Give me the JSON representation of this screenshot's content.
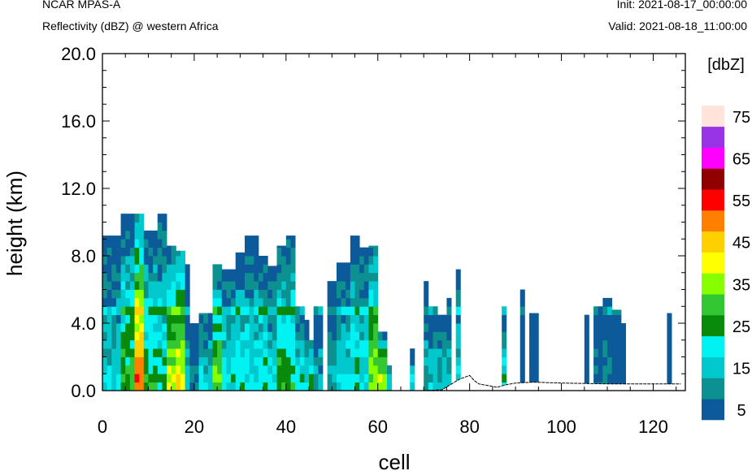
{
  "header": {
    "left_line1": "NCAR MPAS-A",
    "left_line2": "Reflectivity (dBZ) @ western Africa",
    "right_line1": "Init: 2021-08-17_00:00:00",
    "right_line2": "Valid: 2021-08-18_11:00:00"
  },
  "chart_data": {
    "type": "heatmap",
    "xlabel": "cell",
    "ylabel": "height (km)",
    "xlim": [
      0,
      127
    ],
    "ylim": [
      0,
      20
    ],
    "x_ticks": [
      0,
      20,
      40,
      60,
      80,
      100,
      120
    ],
    "x_tick_labels": [
      "0",
      "20",
      "40",
      "60",
      "80",
      "100",
      "120"
    ],
    "y_ticks": [
      0,
      4,
      8,
      12,
      16,
      20
    ],
    "y_tick_labels": [
      "0.0",
      "4.0",
      "8.0",
      "12.0",
      "16.0",
      "20.0"
    ],
    "colorbar": {
      "title": "[dbZ]",
      "labels": [
        "5",
        "15",
        "25",
        "35",
        "45",
        "55",
        "65",
        "75"
      ],
      "levels": [
        5,
        10,
        15,
        20,
        25,
        30,
        35,
        40,
        45,
        50,
        55,
        60,
        65,
        70,
        75
      ],
      "colors": [
        "#0d5a9a",
        "#0c9090",
        "#00c8cc",
        "#00f2f2",
        "#0a8a0a",
        "#33c833",
        "#88ff00",
        "#ffff00",
        "#ffd000",
        "#ff8000",
        "#ff0000",
        "#900000",
        "#ff00ff",
        "#9933e6",
        "#ffe4dc"
      ]
    },
    "note": "columns list [cell_start, cell_end, top_km, core_dBZ]",
    "columns": [
      [
        0,
        4,
        9.2,
        20
      ],
      [
        4,
        7,
        10.5,
        30
      ],
      [
        7,
        9,
        10.5,
        55
      ],
      [
        9,
        12,
        9.5,
        28
      ],
      [
        12,
        14,
        10.5,
        25
      ],
      [
        14,
        16,
        8.6,
        40
      ],
      [
        16,
        18,
        8.3,
        45
      ],
      [
        18,
        19,
        7.5,
        15
      ],
      [
        19,
        21,
        4.0,
        10
      ],
      [
        21,
        24,
        4.6,
        20
      ],
      [
        24,
        26,
        7.5,
        35
      ],
      [
        26,
        29,
        7.2,
        22
      ],
      [
        29,
        31,
        8.2,
        25
      ],
      [
        31,
        34,
        9.2,
        22
      ],
      [
        34,
        36,
        8.0,
        26
      ],
      [
        36,
        38,
        7.4,
        20
      ],
      [
        38,
        40,
        8.6,
        30
      ],
      [
        40,
        42,
        9.2,
        28
      ],
      [
        42,
        44,
        5.0,
        25
      ],
      [
        44,
        45,
        4.2,
        20
      ],
      [
        45,
        46,
        3.0,
        25
      ],
      [
        46,
        48,
        5.0,
        15
      ],
      [
        49,
        51,
        6.5,
        15
      ],
      [
        51,
        54,
        7.6,
        20
      ],
      [
        54,
        56,
        9.2,
        25
      ],
      [
        56,
        58,
        8.5,
        22
      ],
      [
        58,
        60,
        8.6,
        38
      ],
      [
        60,
        62,
        3.5,
        40
      ],
      [
        62,
        63,
        1.5,
        15
      ],
      [
        67,
        68,
        2.5,
        20
      ],
      [
        70,
        71,
        6.5,
        15
      ],
      [
        71,
        73,
        5.0,
        20
      ],
      [
        73,
        75,
        4.5,
        20
      ],
      [
        75,
        76,
        5.5,
        15
      ],
      [
        77,
        78,
        7.2,
        20
      ],
      [
        87,
        88,
        5.0,
        25
      ],
      [
        91,
        92,
        6.0,
        5
      ],
      [
        93,
        95,
        4.6,
        5
      ],
      [
        105,
        106,
        4.5,
        5
      ],
      [
        107,
        109,
        5.0,
        10
      ],
      [
        109,
        111,
        5.5,
        10
      ],
      [
        111,
        113,
        4.8,
        5
      ],
      [
        113,
        114,
        4.0,
        5
      ],
      [
        123,
        124,
        4.6,
        5
      ]
    ],
    "terrain": {
      "x": [
        0,
        60,
        70,
        74,
        77,
        78,
        80,
        81,
        82,
        84,
        86,
        88,
        90,
        94,
        100,
        110,
        126
      ],
      "y": [
        0,
        0,
        0,
        0.05,
        0.55,
        0.7,
        0.9,
        0.6,
        0.4,
        0.3,
        0.2,
        0.35,
        0.45,
        0.5,
        0.45,
        0.4,
        0.4
      ]
    }
  }
}
